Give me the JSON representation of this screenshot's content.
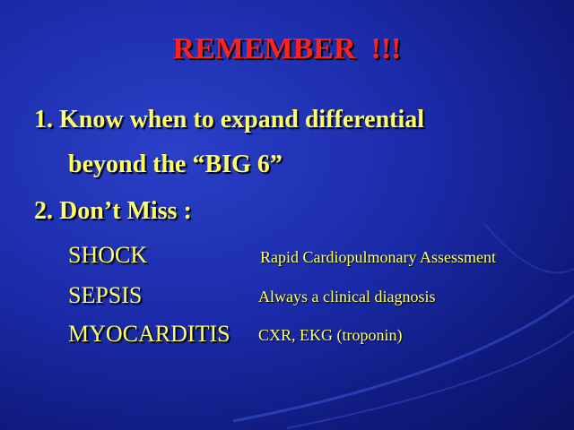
{
  "slide": {
    "title": "REMEMBER  !!!",
    "point1_line1": "1. Know when to expand differential",
    "point1_line2": "beyond the “BIG 6”",
    "point2": "2. Don’t Miss :",
    "items": [
      {
        "term": "SHOCK",
        "note": "Rapid Cardiopulmonary Assessment"
      },
      {
        "term": "SEPSIS",
        "note": "Always  a clinical diagnosis"
      },
      {
        "term": "MYOCARDITIS",
        "note": "CXR, EKG (troponin)"
      }
    ]
  },
  "colors": {
    "title": "#ff2020",
    "text": "#ffff66",
    "background": "#1a2aa8"
  }
}
